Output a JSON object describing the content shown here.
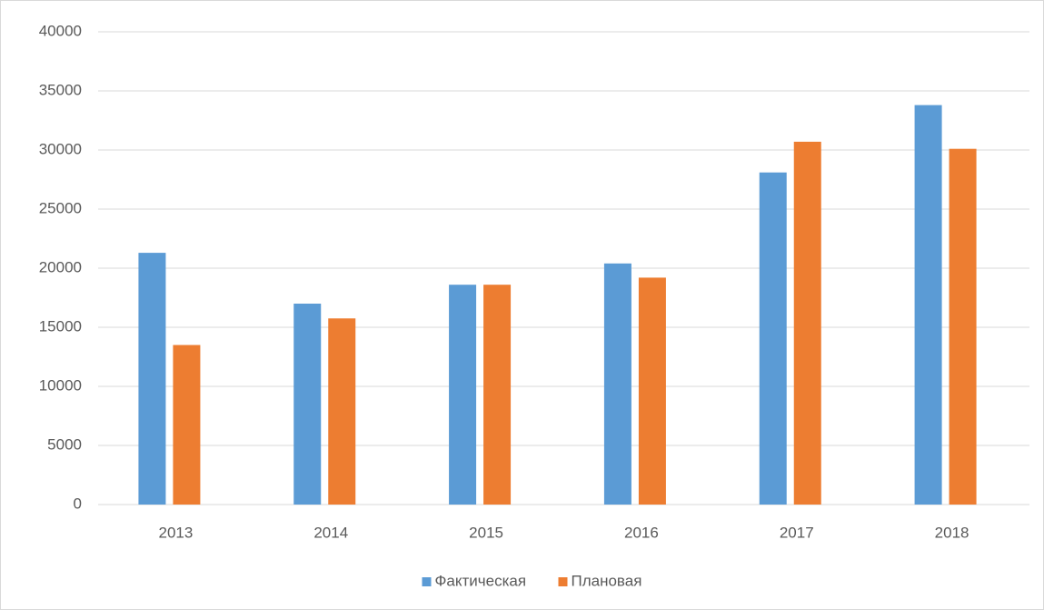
{
  "chart_data": {
    "type": "bar",
    "categories": [
      "2013",
      "2014",
      "2015",
      "2016",
      "2017",
      "2018"
    ],
    "series": [
      {
        "name": "Фактическая",
        "color": "#5b9bd5",
        "values": [
          21300,
          17000,
          18600,
          20400,
          28100,
          33800
        ]
      },
      {
        "name": "Плановая",
        "color": "#ed7d31",
        "values": [
          13500,
          15750,
          18600,
          19200,
          30700,
          30100
        ]
      }
    ],
    "ylim": [
      0,
      40000
    ],
    "yticks": [
      0,
      5000,
      10000,
      15000,
      20000,
      25000,
      30000,
      35000,
      40000
    ],
    "grid": true,
    "legend": "bottom"
  }
}
